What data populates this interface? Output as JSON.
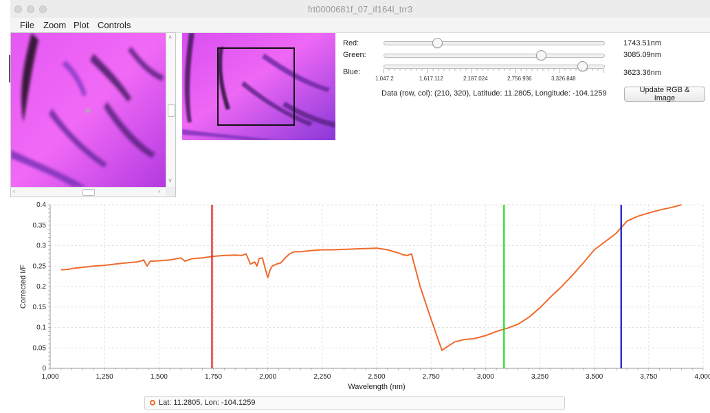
{
  "window": {
    "title": "frt0000681f_07_if164l_trr3"
  },
  "menu": {
    "items": [
      "File",
      "Zoom",
      "Plot",
      "Controls"
    ]
  },
  "controls": {
    "red": {
      "label": "Red:",
      "value": "1743.51nm",
      "wavelength_nm": 1743.51
    },
    "green": {
      "label": "Green:",
      "value": "3085.09nm",
      "wavelength_nm": 3085.09
    },
    "blue": {
      "label": "Blue:",
      "value": "3623.36nm",
      "wavelength_nm": 3623.36
    },
    "slider_range_nm": [
      1047.2,
      3896.76
    ],
    "slider_ticks": [
      "1,047.2",
      "1,617.112",
      "2,187.024",
      "2,756.936",
      "3,326.848"
    ],
    "data_info": "Data (row, col): (210, 320), Latitude: 11.2805, Longitude: -104.1259",
    "update_button": "Update RGB & Image"
  },
  "colors": {
    "red_band": "#e4201c",
    "green_band": "#19e01c",
    "blue_band": "#1212c8",
    "spectrum": "#f06a2c",
    "image_magenta": "#e24ff0"
  },
  "chart_data": {
    "type": "line",
    "xlabel": "Wavelength (nm)",
    "ylabel": "Corrected I/F",
    "xlim": [
      1000,
      4000
    ],
    "ylim": [
      0,
      0.4
    ],
    "xticks": [
      1000,
      1250,
      1500,
      1750,
      2000,
      2250,
      2500,
      2750,
      3000,
      3250,
      3500,
      3750,
      4000
    ],
    "xtick_labels": [
      "1,000",
      "1,250",
      "1,500",
      "1,750",
      "2,000",
      "2,250",
      "2,500",
      "2,750",
      "3,000",
      "3,250",
      "3,500",
      "3,750",
      "4,000"
    ],
    "yticks": [
      0,
      0.05,
      0.1,
      0.15,
      0.2,
      0.25,
      0.3,
      0.35,
      0.4
    ],
    "ytick_labels": [
      "0",
      "0.05",
      "0.1",
      "0.15",
      "0.2",
      "0.25",
      "0.3",
      "0.35",
      "0.4"
    ],
    "grid": true,
    "legend_position": "bottom",
    "vertical_markers": [
      {
        "x": 1743.51,
        "color": "#e4201c"
      },
      {
        "x": 3085.09,
        "color": "#19e01c"
      },
      {
        "x": 3623.36,
        "color": "#1212c8"
      }
    ],
    "series": [
      {
        "name": "Lat: 11.2805, Lon: -104.1259",
        "color": "#f06a2c",
        "x": [
          1050,
          1080,
          1100,
          1150,
          1200,
          1250,
          1300,
          1350,
          1400,
          1430,
          1445,
          1460,
          1500,
          1550,
          1600,
          1620,
          1650,
          1700,
          1750,
          1800,
          1850,
          1880,
          1900,
          1920,
          1940,
          1950,
          1960,
          1975,
          1990,
          2000,
          2010,
          2020,
          2040,
          2060,
          2080,
          2100,
          2120,
          2150,
          2200,
          2250,
          2300,
          2350,
          2400,
          2450,
          2500,
          2550,
          2600,
          2620,
          2640,
          2660,
          2700,
          2750,
          2800,
          2830,
          2860,
          2900,
          2950,
          3000,
          3050,
          3085,
          3100,
          3150,
          3200,
          3250,
          3300,
          3350,
          3400,
          3450,
          3500,
          3550,
          3600,
          3625,
          3650,
          3700,
          3750,
          3800,
          3850,
          3880,
          3900
        ],
        "y": [
          0.241,
          0.242,
          0.244,
          0.247,
          0.25,
          0.252,
          0.255,
          0.258,
          0.26,
          0.265,
          0.25,
          0.262,
          0.263,
          0.265,
          0.27,
          0.262,
          0.268,
          0.27,
          0.274,
          0.276,
          0.277,
          0.276,
          0.28,
          0.255,
          0.26,
          0.25,
          0.268,
          0.27,
          0.24,
          0.222,
          0.24,
          0.25,
          0.255,
          0.258,
          0.27,
          0.28,
          0.285,
          0.285,
          0.288,
          0.29,
          0.29,
          0.291,
          0.292,
          0.293,
          0.294,
          0.29,
          0.282,
          0.278,
          0.276,
          0.28,
          0.2,
          0.12,
          0.044,
          0.055,
          0.065,
          0.07,
          0.073,
          0.08,
          0.09,
          0.096,
          0.098,
          0.108,
          0.125,
          0.148,
          0.175,
          0.2,
          0.228,
          0.258,
          0.29,
          0.31,
          0.33,
          0.345,
          0.36,
          0.372,
          0.38,
          0.387,
          0.393,
          0.397,
          0.4
        ]
      }
    ]
  }
}
